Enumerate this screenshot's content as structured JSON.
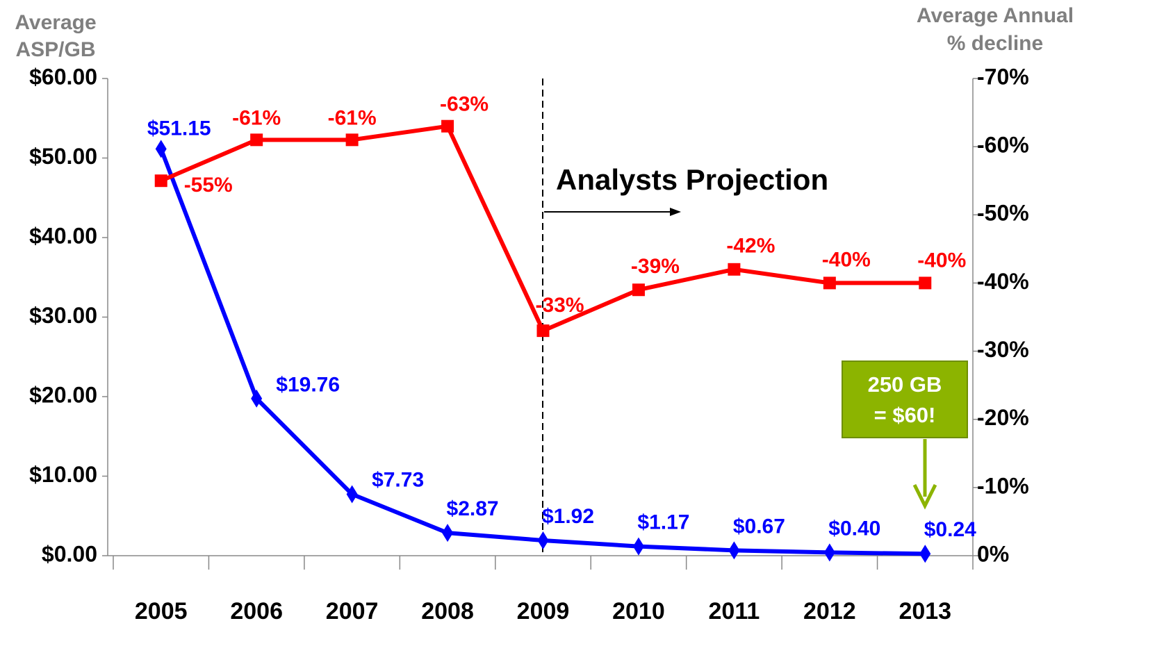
{
  "chart_data": {
    "type": "line",
    "ylabel": [
      "Average",
      "ASP/GB"
    ],
    "y2label": [
      "Average Annual",
      "% decline"
    ],
    "categories": [
      "2005",
      "2006",
      "2007",
      "2008",
      "2009",
      "2010",
      "2011",
      "2012",
      "2013"
    ],
    "series": [
      {
        "name": "Average ASP/GB",
        "color": "#0000ff",
        "marker": "diamond",
        "values": [
          51.15,
          19.76,
          7.73,
          2.87,
          1.92,
          1.17,
          0.67,
          0.4,
          0.24
        ],
        "value_labels": [
          "$51.15",
          "$19.76",
          "$7.73",
          "$2.87",
          "$1.92",
          "$1.17",
          "$0.67",
          "$0.40",
          "$0.24"
        ]
      },
      {
        "name": "Average Annual % decline",
        "color": "#ff0000",
        "marker": "square",
        "axis": "y2",
        "values": [
          -55,
          -61,
          -61,
          -63,
          -33,
          -39,
          -42,
          -40,
          -40
        ],
        "value_labels": [
          "-55%",
          "-61%",
          "-61%",
          "-63%",
          "-33%",
          "-39%",
          "-42%",
          "-40%",
          "-40%"
        ]
      }
    ],
    "ylim": [
      0,
      60
    ],
    "yticks": [
      {
        "value": 0,
        "label": "$0.00"
      },
      {
        "value": 10,
        "label": "$10.00"
      },
      {
        "value": 20,
        "label": "$20.00"
      },
      {
        "value": 30,
        "label": "$30.00"
      },
      {
        "value": 40,
        "label": "$40.00"
      },
      {
        "value": 50,
        "label": "$50.00"
      },
      {
        "value": 60,
        "label": "$60.00"
      }
    ],
    "y2lim": [
      0,
      -70
    ],
    "y2ticks": [
      {
        "value": 0,
        "label": "0%"
      },
      {
        "value": -10,
        "label": "-10%"
      },
      {
        "value": -20,
        "label": "-20%"
      },
      {
        "value": -30,
        "label": "-30%"
      },
      {
        "value": -40,
        "label": "-40%"
      },
      {
        "value": -50,
        "label": "-50%"
      },
      {
        "value": -60,
        "label": "-60%"
      },
      {
        "value": -70,
        "label": "-70%"
      }
    ],
    "annotations": {
      "projection": "Analysts Projection",
      "callout": [
        "250 GB",
        "= $60!"
      ]
    }
  }
}
